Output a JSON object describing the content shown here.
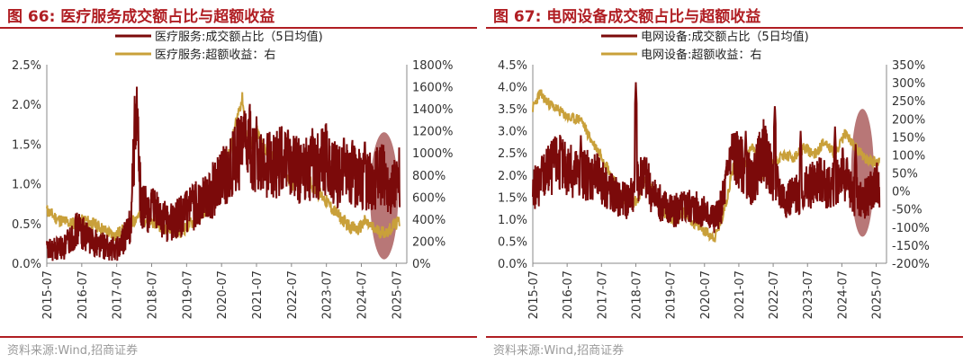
{
  "panels": [
    {
      "title": "图 66:  医疗服务成交额占比与超额收益",
      "source": "资料来源:Wind,招商证券",
      "colors": {
        "share": "#7b0a0a",
        "excess": "#c9a03a",
        "ellipse": "#a04a4a"
      }
    },
    {
      "title": "图 67:  电网设备成交额占比与超额收益",
      "source": "资料来源:Wind,招商证券",
      "colors": {
        "share": "#7b0a0a",
        "excess": "#c9a03a",
        "ellipse": "#a04a4a"
      }
    }
  ],
  "chart_data": [
    {
      "type": "line",
      "title": "医疗服务成交额占比与超额收益",
      "series": [
        {
          "name": "医疗服务:成交额占比（5日均值)",
          "axis": "left",
          "anchors": [
            [
              2015.5,
              0.15
            ],
            [
              2016.0,
              0.2
            ],
            [
              2016.4,
              0.45
            ],
            [
              2016.7,
              0.3
            ],
            [
              2017.0,
              0.25
            ],
            [
              2017.3,
              0.18
            ],
            [
              2017.6,
              0.2
            ],
            [
              2017.9,
              0.5
            ],
            [
              2018.05,
              1.95
            ],
            [
              2018.2,
              0.7
            ],
            [
              2018.6,
              0.65
            ],
            [
              2019.0,
              0.5
            ],
            [
              2019.4,
              0.6
            ],
            [
              2019.8,
              0.75
            ],
            [
              2020.2,
              0.9
            ],
            [
              2020.6,
              1.1
            ],
            [
              2021.0,
              1.4
            ],
            [
              2021.3,
              1.5
            ],
            [
              2021.6,
              1.2
            ],
            [
              2022.0,
              1.25
            ],
            [
              2022.4,
              1.3
            ],
            [
              2022.8,
              1.15
            ],
            [
              2023.2,
              1.2
            ],
            [
              2023.5,
              1.3
            ],
            [
              2023.8,
              1.1
            ],
            [
              2024.2,
              1.15
            ],
            [
              2024.5,
              1.05
            ],
            [
              2024.8,
              1.0
            ],
            [
              2025.1,
              1.1
            ],
            [
              2025.4,
              0.95
            ],
            [
              2025.6,
              1.1
            ]
          ]
        },
        {
          "name": "医疗服务:超额收益：右",
          "axis": "right",
          "anchors": [
            [
              2015.5,
              480
            ],
            [
              2015.8,
              400
            ],
            [
              2016.2,
              360
            ],
            [
              2016.6,
              390
            ],
            [
              2017.0,
              330
            ],
            [
              2017.4,
              250
            ],
            [
              2017.8,
              320
            ],
            [
              2018.1,
              430
            ],
            [
              2018.5,
              380
            ],
            [
              2018.9,
              330
            ],
            [
              2019.3,
              280
            ],
            [
              2019.7,
              380
            ],
            [
              2020.1,
              500
            ],
            [
              2020.5,
              700
            ],
            [
              2020.8,
              1100
            ],
            [
              2021.0,
              1400
            ],
            [
              2021.1,
              1500
            ],
            [
              2021.25,
              1000
            ],
            [
              2021.5,
              1200
            ],
            [
              2021.8,
              1000
            ],
            [
              2022.1,
              950
            ],
            [
              2022.5,
              700
            ],
            [
              2022.8,
              950
            ],
            [
              2023.1,
              700
            ],
            [
              2023.4,
              600
            ],
            [
              2023.7,
              480
            ],
            [
              2024.1,
              350
            ],
            [
              2024.4,
              300
            ],
            [
              2024.6,
              380
            ],
            [
              2024.9,
              300
            ],
            [
              2025.2,
              280
            ],
            [
              2025.6,
              380
            ]
          ]
        }
      ],
      "spikes": [
        [
          2018.1,
          1.95
        ],
        [
          2021.5,
          1.85
        ],
        [
          2021.15,
          1.9
        ],
        [
          2022.4,
          1.75
        ],
        [
          2023.1,
          1.7
        ],
        [
          2024.0,
          1.65
        ],
        [
          2024.6,
          1.6
        ],
        [
          2024.95,
          1.5
        ]
      ],
      "x_tick_labels": [
        "2015-07",
        "2016-07",
        "2017-07",
        "2018-07",
        "2019-07",
        "2020-07",
        "2021-07",
        "2022-07",
        "2023-07",
        "2024-07",
        "2025-07"
      ],
      "y_left_ticks": [
        "0.0%",
        "0.5%",
        "1.0%",
        "1.5%",
        "2.0%",
        "2.5%"
      ],
      "y_right_ticks": [
        "0%",
        "200%",
        "400%",
        "600%",
        "800%",
        "1000%",
        "1200%",
        "1400%",
        "1600%",
        "1800%"
      ],
      "ylim_left": [
        0,
        2.5
      ],
      "ylim_right": [
        0,
        1800
      ],
      "xlim": [
        2015.5,
        2025.8
      ],
      "highlight": {
        "center_x": 2025.15,
        "center_y_left": 0.85,
        "radius_x_years": 0.4,
        "radius_y_left": 0.8
      }
    },
    {
      "type": "line",
      "title": "电网设备成交额占比与超额收益",
      "series": [
        {
          "name": "电网设备:成交额占比（5日均值)",
          "axis": "left",
          "anchors": [
            [
              2015.5,
              1.6
            ],
            [
              2015.8,
              2.0
            ],
            [
              2016.2,
              2.3
            ],
            [
              2016.6,
              2.1
            ],
            [
              2017.0,
              2.0
            ],
            [
              2017.3,
              2.0
            ],
            [
              2017.6,
              1.8
            ],
            [
              2017.9,
              1.5
            ],
            [
              2018.2,
              1.4
            ],
            [
              2018.5,
              1.7
            ],
            [
              2018.7,
              2.1
            ],
            [
              2019.0,
              1.5
            ],
            [
              2019.3,
              1.3
            ],
            [
              2019.7,
              1.2
            ],
            [
              2020.0,
              1.3
            ],
            [
              2020.4,
              1.2
            ],
            [
              2020.8,
              1.0
            ],
            [
              2021.0,
              1.3
            ],
            [
              2021.3,
              2.5
            ],
            [
              2021.6,
              2.2
            ],
            [
              2021.9,
              1.8
            ],
            [
              2022.2,
              2.6
            ],
            [
              2022.5,
              1.9
            ],
            [
              2022.8,
              1.5
            ],
            [
              2023.1,
              1.5
            ],
            [
              2023.5,
              1.7
            ],
            [
              2023.8,
              1.9
            ],
            [
              2024.2,
              1.7
            ],
            [
              2024.5,
              2.1
            ],
            [
              2024.8,
              1.6
            ],
            [
              2025.1,
              1.4
            ],
            [
              2025.5,
              1.8
            ]
          ]
        },
        {
          "name": "电网设备:超额收益：右",
          "axis": "right",
          "anchors": [
            [
              2015.5,
              230
            ],
            [
              2015.7,
              270
            ],
            [
              2016.0,
              240
            ],
            [
              2016.3,
              220
            ],
            [
              2016.6,
              200
            ],
            [
              2016.9,
              200
            ],
            [
              2017.2,
              140
            ],
            [
              2017.5,
              100
            ],
            [
              2017.8,
              40
            ],
            [
              2018.0,
              0
            ],
            [
              2018.3,
              -40
            ],
            [
              2018.6,
              -20
            ],
            [
              2018.8,
              40
            ],
            [
              2019.0,
              0
            ],
            [
              2019.3,
              -60
            ],
            [
              2019.6,
              -80
            ],
            [
              2019.9,
              -60
            ],
            [
              2020.2,
              -90
            ],
            [
              2020.5,
              -110
            ],
            [
              2020.8,
              -130
            ],
            [
              2021.0,
              -80
            ],
            [
              2021.2,
              0
            ],
            [
              2021.4,
              100
            ],
            [
              2021.6,
              60
            ],
            [
              2021.9,
              130
            ],
            [
              2022.2,
              40
            ],
            [
              2022.5,
              80
            ],
            [
              2022.8,
              100
            ],
            [
              2023.1,
              90
            ],
            [
              2023.4,
              120
            ],
            [
              2023.7,
              100
            ],
            [
              2024.0,
              140
            ],
            [
              2024.3,
              100
            ],
            [
              2024.6,
              160
            ],
            [
              2024.9,
              120
            ],
            [
              2025.2,
              90
            ],
            [
              2025.5,
              80
            ]
          ]
        }
      ],
      "spikes": [
        [
          2016.15,
          2.8
        ],
        [
          2016.9,
          2.9
        ],
        [
          2018.5,
          4.1
        ],
        [
          2021.2,
          2.4
        ],
        [
          2021.7,
          3.0
        ],
        [
          2022.55,
          3.6
        ],
        [
          2023.3,
          3.0
        ],
        [
          2024.3,
          3.1
        ],
        [
          2024.9,
          2.7
        ]
      ],
      "x_tick_labels": [
        "2015-07",
        "2016-07",
        "2017-07",
        "2018-07",
        "2019-07",
        "2020-07",
        "2021-07",
        "2022-07",
        "2023-07",
        "2024-07",
        "2025-07"
      ],
      "y_left_ticks": [
        "0.0%",
        "0.5%",
        "1.0%",
        "1.5%",
        "2.0%",
        "2.5%",
        "3.0%",
        "3.5%",
        "4.0%",
        "4.5%"
      ],
      "y_right_ticks": [
        "-200%",
        "-150%",
        "-100%",
        "-50%",
        "0%",
        "50%",
        "100%",
        "150%",
        "200%",
        "250%",
        "300%",
        "350%"
      ],
      "ylim_left": [
        0,
        4.5
      ],
      "ylim_right": [
        -200,
        350
      ],
      "xlim": [
        2015.5,
        2025.8
      ],
      "highlight": {
        "center_x": 2025.1,
        "center_y_left": 2.05,
        "radius_x_years": 0.33,
        "radius_y_left": 1.45
      }
    }
  ]
}
